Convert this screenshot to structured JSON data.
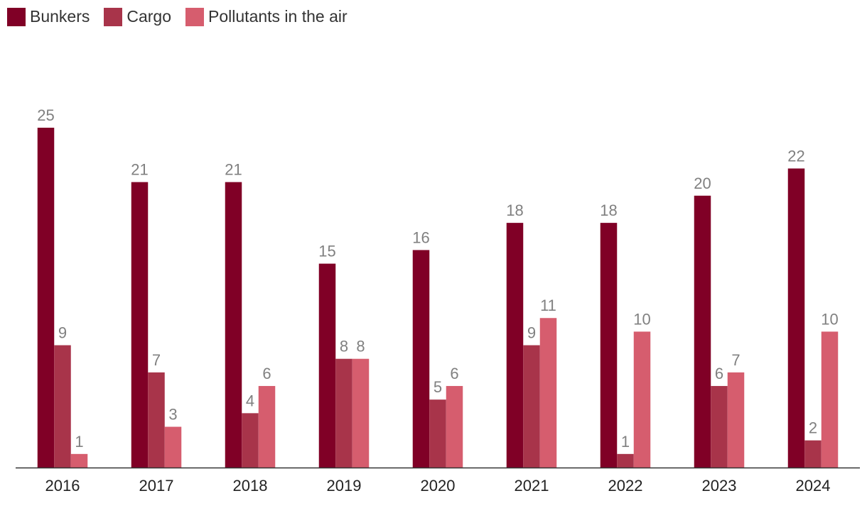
{
  "chart_data": {
    "type": "bar",
    "title": "",
    "xlabel": "",
    "ylabel": "",
    "ylim": [
      0,
      25
    ],
    "categories": [
      "2016",
      "2017",
      "2018",
      "2019",
      "2020",
      "2021",
      "2022",
      "2023",
      "2024"
    ],
    "series": [
      {
        "name": "Bunkers",
        "color": "#800026",
        "values": [
          25,
          21,
          21,
          15,
          16,
          18,
          18,
          20,
          22
        ]
      },
      {
        "name": "Cargo",
        "color": "#a8344a",
        "values": [
          9,
          7,
          4,
          8,
          5,
          9,
          1,
          6,
          2
        ]
      },
      {
        "name": "Pollutants in the air",
        "color": "#d65d6e",
        "values": [
          1,
          3,
          6,
          8,
          6,
          11,
          10,
          7,
          10
        ]
      }
    ],
    "legend": "top-left",
    "grid": false
  }
}
